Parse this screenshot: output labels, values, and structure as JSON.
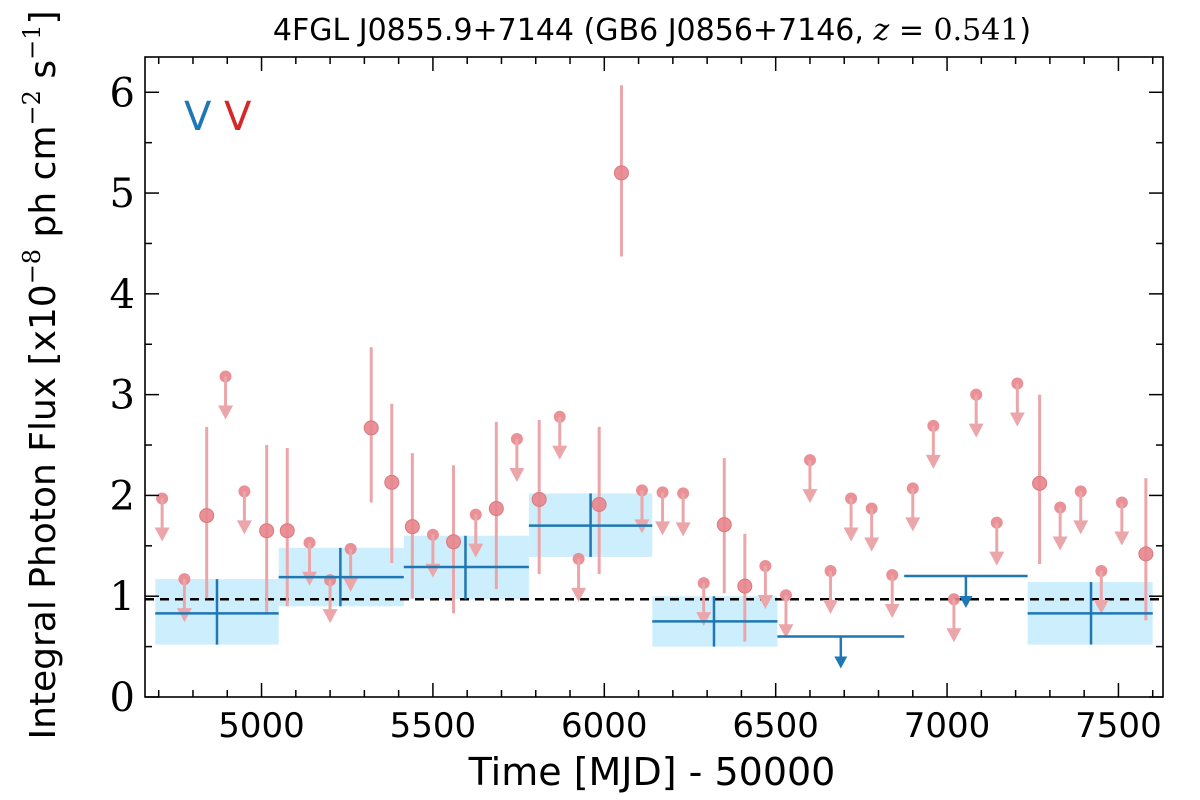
{
  "chart_data": {
    "type": "scatter",
    "title": {
      "prefix": "4FGL J0855.9+7144 (GB6 J0856+7146, ",
      "z_symbol": "z",
      "z_equals": " = ",
      "z_value": "0.541",
      "suffix": ")"
    },
    "xlabel": "Time [MJD] - 50000",
    "ylabel": {
      "main": "Integral Photon Flux [x10",
      "exp1": "−8",
      "mid": " ph cm",
      "exp2": "−2",
      "mid2": " s",
      "exp3": "−1",
      "end": "]"
    },
    "xlim": [
      4660,
      7630
    ],
    "ylim": [
      0,
      6.35
    ],
    "xticks": [
      {
        "value": 5000,
        "label": "5000"
      },
      {
        "value": 5500,
        "label": "5500"
      },
      {
        "value": 6000,
        "label": "6000"
      },
      {
        "value": 6500,
        "label": "6500"
      },
      {
        "value": 7000,
        "label": "7000"
      },
      {
        "value": 7500,
        "label": "7500"
      }
    ],
    "xminor_step": 100,
    "yticks": [
      {
        "value": 0,
        "label": "0"
      },
      {
        "value": 1,
        "label": "1"
      },
      {
        "value": 2,
        "label": "2"
      },
      {
        "value": 3,
        "label": "3"
      },
      {
        "value": 4,
        "label": "4"
      },
      {
        "value": 5,
        "label": "5"
      },
      {
        "value": 6,
        "label": "6"
      }
    ],
    "yminor_step": 0.5,
    "grid": false,
    "legend": [
      {
        "label": "V",
        "color": "#1f77b4"
      },
      {
        "label": "V",
        "color": "#d62728"
      }
    ],
    "legend_position": "top-left",
    "mean_flux": 0.97,
    "colors": {
      "red_point": "#e8858c",
      "red_bar": "#eba6aa",
      "blue_line": "#1f77b4",
      "blue_band": "#cdeefc"
    },
    "series": [
      {
        "name": "",
        "kind": "long-bin",
        "detections": [
          {
            "x": 4870,
            "x_lo": 4690,
            "x_hi": 5050,
            "y": 0.83,
            "y_lo": 0.52,
            "y_hi": 1.17,
            "band_lo": 0.52,
            "band_hi": 1.17
          },
          {
            "x": 5230,
            "x_lo": 5050,
            "x_hi": 5415,
            "y": 1.19,
            "y_lo": 0.9,
            "y_hi": 1.48,
            "band_lo": 0.9,
            "band_hi": 1.48
          },
          {
            "x": 5595,
            "x_lo": 5415,
            "x_hi": 5780,
            "y": 1.29,
            "y_lo": 0.97,
            "y_hi": 1.6,
            "band_lo": 0.97,
            "band_hi": 1.6
          },
          {
            "x": 5960,
            "x_lo": 5780,
            "x_hi": 6140,
            "y": 1.7,
            "y_lo": 1.39,
            "y_hi": 2.02,
            "band_lo": 1.39,
            "band_hi": 2.02
          },
          {
            "x": 6320,
            "x_lo": 6140,
            "x_hi": 6505,
            "y": 0.75,
            "y_lo": 0.5,
            "y_hi": 1.0,
            "band_lo": 0.5,
            "band_hi": 1.0
          },
          {
            "x": 7420,
            "x_lo": 7235,
            "x_hi": 7600,
            "y": 0.83,
            "y_lo": 0.52,
            "y_hi": 1.14,
            "band_lo": 0.52,
            "band_hi": 1.14
          }
        ],
        "upper_limits": [
          {
            "x": 6690,
            "x_lo": 6505,
            "x_hi": 6875,
            "y": 0.6
          },
          {
            "x": 7055,
            "x_lo": 6875,
            "x_hi": 7235,
            "y": 1.2
          }
        ]
      },
      {
        "name": "",
        "kind": "short-bin",
        "detections": [
          {
            "x": 4840,
            "y": 1.8,
            "y_lo": 0.98,
            "y_hi": 2.68
          },
          {
            "x": 5015,
            "y": 1.65,
            "y_lo": 0.82,
            "y_hi": 2.5
          },
          {
            "x": 5075,
            "y": 1.65,
            "y_lo": 0.9,
            "y_hi": 2.47
          },
          {
            "x": 5320,
            "y": 2.67,
            "y_lo": 1.93,
            "y_hi": 3.47
          },
          {
            "x": 5380,
            "y": 2.13,
            "y_lo": 1.33,
            "y_hi": 2.91
          },
          {
            "x": 5440,
            "y": 1.69,
            "y_lo": 0.98,
            "y_hi": 2.42
          },
          {
            "x": 5560,
            "y": 1.54,
            "y_lo": 0.83,
            "y_hi": 2.3
          },
          {
            "x": 5685,
            "y": 1.87,
            "y_lo": 1.07,
            "y_hi": 2.73
          },
          {
            "x": 5810,
            "y": 1.96,
            "y_lo": 1.22,
            "y_hi": 2.75
          },
          {
            "x": 5985,
            "y": 1.91,
            "y_lo": 1.22,
            "y_hi": 2.68
          },
          {
            "x": 6050,
            "y": 5.2,
            "y_lo": 4.37,
            "y_hi": 6.07
          },
          {
            "x": 6350,
            "y": 1.71,
            "y_lo": 1.03,
            "y_hi": 2.37
          },
          {
            "x": 6410,
            "y": 1.1,
            "y_lo": 0.55,
            "y_hi": 1.62
          },
          {
            "x": 7270,
            "y": 2.12,
            "y_lo": 1.32,
            "y_hi": 3.0
          },
          {
            "x": 7580,
            "y": 1.42,
            "y_lo": 0.76,
            "y_hi": 2.17
          }
        ],
        "upper_limits": [
          {
            "x": 4710,
            "y": 1.97
          },
          {
            "x": 4775,
            "y": 1.17
          },
          {
            "x": 4895,
            "y": 3.18
          },
          {
            "x": 4950,
            "y": 2.04
          },
          {
            "x": 5140,
            "y": 1.53
          },
          {
            "x": 5200,
            "y": 1.16
          },
          {
            "x": 5260,
            "y": 1.47
          },
          {
            "x": 5500,
            "y": 1.61
          },
          {
            "x": 5625,
            "y": 1.81
          },
          {
            "x": 5745,
            "y": 2.56
          },
          {
            "x": 5870,
            "y": 2.78
          },
          {
            "x": 5925,
            "y": 1.37
          },
          {
            "x": 6110,
            "y": 2.05
          },
          {
            "x": 6170,
            "y": 2.03
          },
          {
            "x": 6230,
            "y": 2.02
          },
          {
            "x": 6290,
            "y": 1.13
          },
          {
            "x": 6470,
            "y": 1.3
          },
          {
            "x": 6530,
            "y": 1.01
          },
          {
            "x": 6600,
            "y": 2.35
          },
          {
            "x": 6660,
            "y": 1.25
          },
          {
            "x": 6720,
            "y": 1.97
          },
          {
            "x": 6780,
            "y": 1.87
          },
          {
            "x": 6840,
            "y": 1.21
          },
          {
            "x": 6900,
            "y": 2.07
          },
          {
            "x": 6960,
            "y": 2.69
          },
          {
            "x": 7020,
            "y": 0.97
          },
          {
            "x": 7085,
            "y": 3.0
          },
          {
            "x": 7145,
            "y": 1.73
          },
          {
            "x": 7205,
            "y": 3.11
          },
          {
            "x": 7330,
            "y": 1.88
          },
          {
            "x": 7390,
            "y": 2.04
          },
          {
            "x": 7450,
            "y": 1.25
          },
          {
            "x": 7510,
            "y": 1.93
          }
        ]
      }
    ]
  }
}
